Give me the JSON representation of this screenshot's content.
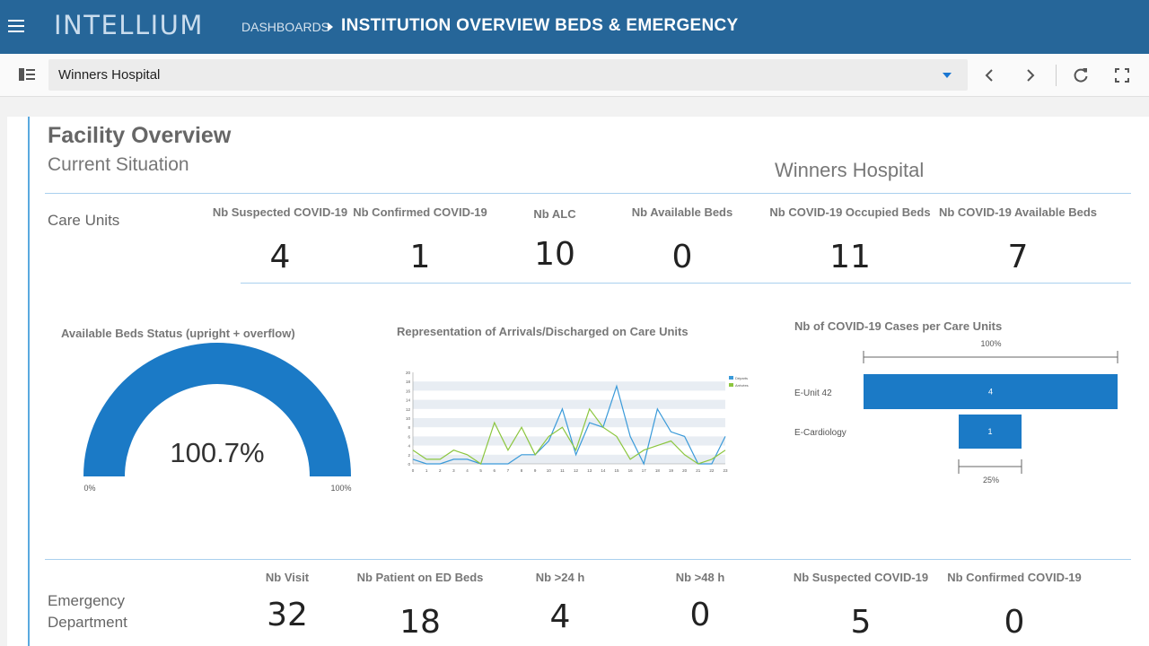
{
  "app": {
    "logo": "INTELLIUM"
  },
  "breadcrumb": {
    "parent": "DASHBOARDS",
    "current": "INSTITUTION OVERVIEW BEDS & EMERGENCY"
  },
  "toolbar": {
    "selected_facility": "Winners Hospital"
  },
  "colors": {
    "header": "#266699",
    "accent": "#1b7ac6",
    "line_green": "#8cc63f"
  },
  "header": {
    "title": "Facility Overview",
    "subtitle": "Current Situation",
    "hospital": "Winners Hospital"
  },
  "care_units": {
    "label": "Care Units",
    "kpis": [
      {
        "label": "Nb Suspected COVID-19",
        "value": "4"
      },
      {
        "label": "Nb Confirmed COVID-19",
        "value": "1"
      },
      {
        "label": "Nb ALC",
        "value": "10"
      },
      {
        "label": "Nb Available Beds",
        "value": "0"
      },
      {
        "label": "Nb COVID-19 Occupied Beds",
        "value": "11"
      },
      {
        "label": "Nb COVID-19 Available Beds",
        "value": "7"
      }
    ]
  },
  "emergency": {
    "label": "Emergency Department",
    "kpis": [
      {
        "label": "Nb Visit",
        "value": "32"
      },
      {
        "label": "Nb Patient on ED Beds",
        "value": "18"
      },
      {
        "label": "Nb >24 h",
        "value": "4"
      },
      {
        "label": "Nb >48 h",
        "value": "0"
      },
      {
        "label": "Nb Suspected COVID-19",
        "value": "5"
      },
      {
        "label": "Nb Confirmed COVID-19",
        "value": "0"
      }
    ]
  },
  "chart_data": [
    {
      "type": "gauge",
      "title": "Available Beds Status (upright + overflow)",
      "value_label": "100.7%",
      "value": 100.7,
      "min_label": "0%",
      "max_label": "100%",
      "range": [
        0,
        100
      ]
    },
    {
      "type": "line",
      "title": "Representation of Arrivals/Discharged on Care Units",
      "x": [
        0,
        1,
        2,
        3,
        4,
        5,
        6,
        7,
        8,
        9,
        10,
        11,
        12,
        13,
        14,
        15,
        16,
        17,
        18,
        19,
        20,
        21,
        22,
        23
      ],
      "ylim": [
        0,
        20
      ],
      "yticks": [
        0,
        2,
        4,
        6,
        8,
        10,
        12,
        14,
        16,
        18,
        20
      ],
      "series": [
        {
          "name": "Départs",
          "color": "#3a9ad9",
          "values": [
            1,
            0,
            0,
            1,
            1,
            0,
            0,
            0,
            2,
            2,
            5,
            12,
            2,
            9,
            8,
            17,
            6,
            0,
            12,
            7,
            6,
            0,
            0,
            6
          ]
        },
        {
          "name": "Arrivées",
          "color": "#8cc63f",
          "values": [
            3,
            1,
            1,
            3,
            2,
            0,
            9,
            3,
            8,
            2,
            6,
            8,
            3,
            12,
            8,
            6,
            1,
            3,
            4,
            5,
            2,
            0,
            1,
            3
          ]
        }
      ]
    },
    {
      "type": "bar",
      "title": "Nb of COVID-19 Cases per Care Units",
      "categories": [
        "E-Unit 42",
        "E-Cardiology"
      ],
      "values": [
        4,
        1
      ],
      "top_scale_label": "100%",
      "bottom_scale_label": "25%"
    }
  ]
}
